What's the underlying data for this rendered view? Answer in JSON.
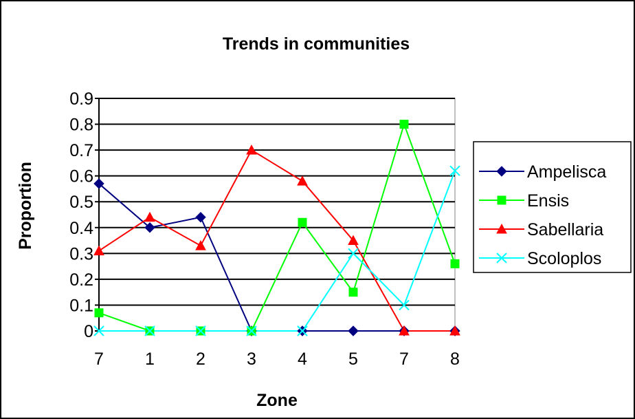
{
  "chart_data": {
    "type": "line",
    "title": "Trends in communities",
    "xlabel": "Zone",
    "ylabel": "Proportion",
    "categories": [
      "7",
      "1",
      "2",
      "3",
      "4",
      "5",
      "7",
      "8"
    ],
    "ylim": [
      0,
      0.9
    ],
    "yticks": [
      "0",
      "0.1",
      "0.2",
      "0.3",
      "0.4",
      "0.5",
      "0.6",
      "0.7",
      "0.8",
      "0.9"
    ],
    "grid": true,
    "legend_position": "right",
    "series": [
      {
        "name": "Ampelisca",
        "color": "#000080",
        "marker": "diamond",
        "values": [
          0.57,
          0.4,
          0.44,
          0,
          0,
          0,
          0,
          0
        ]
      },
      {
        "name": "Ensis",
        "color": "#00ff00",
        "marker": "square",
        "values": [
          0.07,
          0,
          0,
          0,
          0.42,
          0.15,
          0.8,
          0.26
        ]
      },
      {
        "name": "Sabellaria",
        "color": "#ff0000",
        "marker": "triangle",
        "values": [
          0.31,
          0.44,
          0.33,
          0.7,
          0.58,
          0.35,
          0,
          0
        ]
      },
      {
        "name": "Scoloplos",
        "color": "#00ffff",
        "marker": "x",
        "values": [
          0,
          0,
          0,
          0,
          0,
          0.3,
          0.1,
          0.62
        ]
      }
    ]
  }
}
